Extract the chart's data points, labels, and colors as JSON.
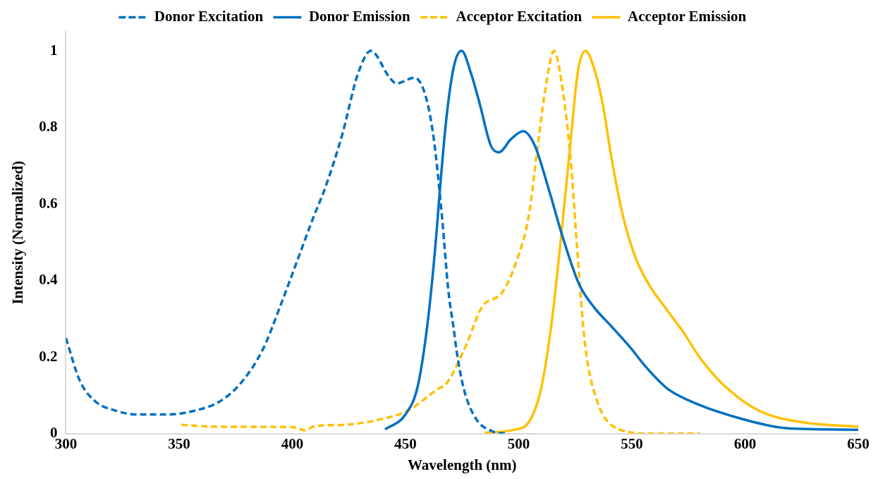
{
  "chart_data": {
    "type": "line",
    "xlabel": "Wavelength (nm)",
    "ylabel": "Intensity (Normalized)",
    "xlim": [
      300,
      650
    ],
    "xticks": [
      300,
      350,
      400,
      450,
      500,
      550,
      600,
      650
    ],
    "ylim": [
      0,
      1.05
    ],
    "yticks": [
      0,
      0.2,
      0.4,
      0.6,
      0.8,
      1
    ],
    "grid": false,
    "legend": "top",
    "marker": "none",
    "series": [
      {
        "name": "Donor Excitation",
        "color": "#0070c0",
        "line_style": "dashed",
        "x": [
          300,
          306,
          313,
          322,
          331,
          345,
          359,
          368,
          377,
          387,
          394.5,
          402.7,
          409,
          415,
          422,
          429,
          434.7,
          443,
          446,
          454,
          459,
          462.5,
          466,
          469,
          471.3,
          472.6,
          475.8,
          481,
          488.7,
          494
        ],
        "values": [
          0.25,
          0.14,
          0.084,
          0.06,
          0.05,
          0.05,
          0.063,
          0.084,
          0.13,
          0.22,
          0.33,
          0.46,
          0.56,
          0.65,
          0.78,
          0.94,
          1.0,
          0.93,
          0.915,
          0.93,
          0.88,
          0.77,
          0.575,
          0.37,
          0.274,
          0.215,
          0.116,
          0.04,
          0.005,
          0
        ]
      },
      {
        "name": "Donor Emission",
        "color": "#0070c0",
        "line_style": "solid",
        "x": [
          441,
          450,
          455.5,
          460,
          463.5,
          464.7,
          468,
          471.4,
          474.8,
          479,
          483,
          487.6,
          491.3,
          496.7,
          502,
          507,
          513.7,
          518.8,
          526.7,
          533.3,
          541,
          549,
          556.8,
          566,
          579,
          598.8,
          618.4,
          650
        ],
        "values": [
          0.011,
          0.05,
          0.126,
          0.3,
          0.51,
          0.6,
          0.82,
          0.96,
          1.0,
          0.94,
          0.857,
          0.754,
          0.735,
          0.77,
          0.79,
          0.754,
          0.63,
          0.526,
          0.39,
          0.33,
          0.28,
          0.227,
          0.17,
          0.116,
          0.077,
          0.038,
          0.014,
          0.01
        ]
      },
      {
        "name": "Acceptor Excitation",
        "color": "#ffc000",
        "line_style": "dashed",
        "x": [
          351,
          366,
          400,
          406,
          409,
          423,
          438,
          451,
          464.7,
          468,
          477,
          483.7,
          492.9,
          499,
          504.5,
          508.3,
          511.8,
          515.6,
          518.9,
          522.9,
          526,
          529.3,
          534.6,
          543.7,
          558,
          580
        ],
        "values": [
          0.023,
          0.018,
          0.017,
          0.008,
          0.018,
          0.023,
          0.036,
          0.06,
          0.118,
          0.13,
          0.234,
          0.33,
          0.37,
          0.45,
          0.57,
          0.746,
          0.9,
          1.0,
          0.92,
          0.72,
          0.47,
          0.234,
          0.086,
          0.013,
          0,
          0
        ]
      },
      {
        "name": "Acceptor Emission",
        "color": "#ffc000",
        "line_style": "solid",
        "x": [
          485,
          498,
          504.5,
          510,
          515,
          519,
          522.9,
          526,
          529.5,
          533,
          537,
          541,
          546,
          551.6,
          558,
          564.6,
          572.5,
          580.4,
          591,
          606,
          624.7,
          650
        ],
        "values": [
          0.002,
          0.01,
          0.03,
          0.12,
          0.31,
          0.53,
          0.76,
          0.94,
          1.0,
          0.96,
          0.865,
          0.72,
          0.57,
          0.46,
          0.385,
          0.33,
          0.267,
          0.195,
          0.124,
          0.06,
          0.03,
          0.018
        ]
      }
    ]
  }
}
